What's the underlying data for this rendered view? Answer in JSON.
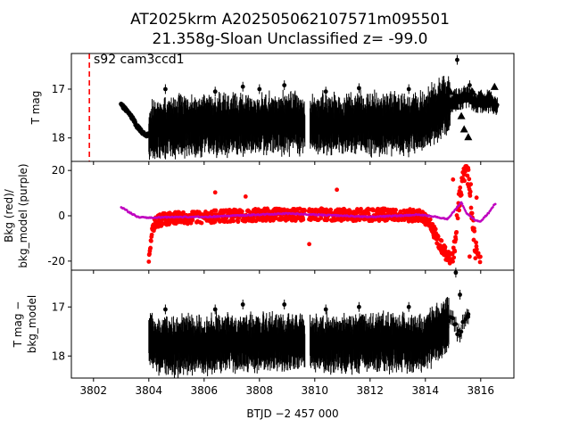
{
  "title_line1": "AT2025krm  A202505062107571m095501",
  "title_line2": "21.358g-Sloan Unclassified z= -99.0",
  "annotation": "s92 cam3ccd1",
  "colors": {
    "data": "#000000",
    "background_points": "#ff0000",
    "background_model": "#bf00bf",
    "marker_line": "#ff0000"
  },
  "chart_data": [
    {
      "type": "scatter",
      "panel": "top",
      "ylabel": "T mag",
      "xlim": [
        3801.2,
        3817.2
      ],
      "ylim": [
        18.48,
        16.27
      ],
      "y_inverted": true,
      "yticks": [
        "17",
        "18"
      ],
      "vertical_line_x": 3801.85,
      "series": [
        {
          "points": [
            [
              3803.0,
              17.32
            ],
            [
              3803.3,
              17.5
            ],
            [
              3803.6,
              17.78
            ],
            [
              3803.9,
              17.96
            ],
            [
              3804.1,
              17.9
            ],
            [
              3804.5,
              17.8
            ],
            [
              3805.0,
              17.75
            ],
            [
              3805.5,
              17.75
            ],
            [
              3806.0,
              17.74
            ],
            [
              3806.5,
              17.72
            ],
            [
              3807.0,
              17.72
            ],
            [
              3807.5,
              17.72
            ],
            [
              3808.0,
              17.72
            ],
            [
              3808.5,
              17.7
            ],
            [
              3809.0,
              17.7
            ],
            [
              3809.5,
              17.7
            ],
            [
              3809.9,
              17.72
            ],
            [
              3810.5,
              17.72
            ],
            [
              3811.0,
              17.72
            ],
            [
              3811.5,
              17.7
            ],
            [
              3812.0,
              17.7
            ],
            [
              3812.5,
              17.7
            ],
            [
              3813.0,
              17.7
            ],
            [
              3813.5,
              17.72
            ],
            [
              3814.0,
              17.62
            ],
            [
              3814.5,
              17.4
            ],
            [
              3814.9,
              17.3
            ],
            [
              3815.2,
              17.2
            ],
            [
              3815.5,
              17.15
            ],
            [
              3815.9,
              17.25
            ],
            [
              3816.2,
              17.25
            ],
            [
              3816.5,
              17.3
            ]
          ],
          "outliers": [
            [
              3804.6,
              17.0
            ],
            [
              3806.4,
              17.05
            ],
            [
              3807.4,
              16.95
            ],
            [
              3808.0,
              17.0
            ],
            [
              3808.9,
              16.92
            ],
            [
              3810.4,
              17.05
            ],
            [
              3811.6,
              16.98
            ],
            [
              3813.4,
              17.0
            ],
            [
              3815.15,
              16.4
            ],
            [
              3815.6,
              16.92
            ]
          ],
          "triangles": [
            [
              3814.9,
              17.05
            ],
            [
              3815.1,
              17.35
            ],
            [
              3815.3,
              17.55
            ],
            [
              3815.5,
              17.2
            ],
            [
              3815.7,
              17.05
            ],
            [
              3816.0,
              17.1
            ],
            [
              3816.3,
              17.1
            ],
            [
              3816.5,
              16.95
            ],
            [
              3815.4,
              17.82
            ],
            [
              3815.55,
              17.98
            ]
          ]
        }
      ]
    },
    {
      "type": "scatter",
      "panel": "middle",
      "ylabel": "Bkg (red)/ bkg_model (purple)",
      "xlim": [
        3801.2,
        3817.2
      ],
      "ylim": [
        -24.0,
        24.0
      ],
      "yticks": [
        20,
        0,
        -20
      ],
      "series": [
        {
          "points": [
            [
              3804.0,
              -19.5
            ],
            [
              3804.05,
              -15.0
            ],
            [
              3804.1,
              -8.0
            ],
            [
              3804.2,
              -3.0
            ],
            [
              3804.5,
              -1.5
            ],
            [
              3805.0,
              -1.0
            ],
            [
              3806.0,
              -0.5
            ],
            [
              3807.0,
              0.0
            ],
            [
              3808.0,
              0.5
            ],
            [
              3809.0,
              0.5
            ],
            [
              3809.6,
              0.5
            ],
            [
              3810.0,
              0.5
            ],
            [
              3811.0,
              0.5
            ],
            [
              3812.0,
              0.5
            ],
            [
              3813.0,
              0.5
            ],
            [
              3813.8,
              0.0
            ],
            [
              3814.2,
              -4.0
            ],
            [
              3814.5,
              -12.0
            ],
            [
              3814.8,
              -18.0
            ],
            [
              3815.0,
              -20.0
            ],
            [
              3815.2,
              5.0
            ],
            [
              3815.3,
              12.0
            ],
            [
              3815.45,
              21.0
            ],
            [
              3815.6,
              15.0
            ],
            [
              3815.7,
              0.0
            ],
            [
              3815.8,
              -14.0
            ],
            [
              3815.9,
              -20.0
            ]
          ],
          "outliers": [
            [
              3806.4,
              10.3
            ],
            [
              3807.5,
              8.5
            ],
            [
              3809.8,
              -12.5
            ],
            [
              3810.8,
              11.5
            ],
            [
              3815.0,
              16.0
            ],
            [
              3815.4,
              19.0
            ],
            [
              3815.6,
              -18.0
            ],
            [
              3815.85,
              8.0
            ]
          ]
        },
        {
          "points": [
            [
              3803.0,
              4.0
            ],
            [
              3803.3,
              1.5
            ],
            [
              3803.6,
              -0.5
            ],
            [
              3804.0,
              -0.8
            ],
            [
              3805.0,
              -0.5
            ],
            [
              3806.0,
              -0.5
            ],
            [
              3807.0,
              0.0
            ],
            [
              3808.0,
              0.5
            ],
            [
              3809.0,
              1.0
            ],
            [
              3809.5,
              0.8
            ],
            [
              3810.0,
              0.5
            ],
            [
              3811.0,
              0.0
            ],
            [
              3812.0,
              -0.5
            ],
            [
              3813.0,
              0.0
            ],
            [
              3813.8,
              0.5
            ],
            [
              3814.4,
              -0.5
            ],
            [
              3814.8,
              -1.5
            ],
            [
              3815.1,
              3.0
            ],
            [
              3815.3,
              6.0
            ],
            [
              3815.5,
              1.0
            ],
            [
              3815.8,
              -2.0
            ],
            [
              3816.0,
              -2.5
            ],
            [
              3816.3,
              1.5
            ],
            [
              3816.5,
              5.0
            ]
          ]
        }
      ]
    },
    {
      "type": "scatter",
      "panel": "bottom",
      "ylabel": "T mag − bkg_model",
      "xlabel": "BTJD −2 457 000",
      "xlim": [
        3801.2,
        3817.2
      ],
      "ylim": [
        18.45,
        16.25
      ],
      "y_inverted": true,
      "xticks": [
        3802,
        3804,
        3806,
        3808,
        3810,
        3812,
        3814,
        3816
      ],
      "yticks": [
        "17",
        "18"
      ],
      "series": [
        {
          "points": [
            [
              3804.0,
              17.75
            ],
            [
              3804.5,
              17.8
            ],
            [
              3805.0,
              17.8
            ],
            [
              3805.5,
              17.78
            ],
            [
              3806.0,
              17.78
            ],
            [
              3806.5,
              17.75
            ],
            [
              3807.0,
              17.75
            ],
            [
              3807.5,
              17.75
            ],
            [
              3808.0,
              17.75
            ],
            [
              3808.5,
              17.72
            ],
            [
              3809.0,
              17.72
            ],
            [
              3809.5,
              17.72
            ],
            [
              3809.9,
              17.75
            ],
            [
              3810.5,
              17.75
            ],
            [
              3811.0,
              17.75
            ],
            [
              3811.5,
              17.72
            ],
            [
              3812.0,
              17.72
            ],
            [
              3812.5,
              17.72
            ],
            [
              3813.0,
              17.72
            ],
            [
              3813.5,
              17.75
            ],
            [
              3814.0,
              17.72
            ],
            [
              3814.3,
              17.6
            ],
            [
              3814.6,
              17.5
            ],
            [
              3815.0,
              17.2
            ],
            [
              3815.2,
              17.55
            ],
            [
              3815.5,
              17.12
            ]
          ],
          "outliers": [
            [
              3804.6,
              17.05
            ],
            [
              3806.4,
              17.05
            ],
            [
              3807.4,
              16.95
            ],
            [
              3808.9,
              16.95
            ],
            [
              3810.4,
              17.05
            ],
            [
              3811.6,
              17.0
            ],
            [
              3813.4,
              17.0
            ],
            [
              3815.1,
              16.3
            ],
            [
              3815.25,
              16.75
            ],
            [
              3815.55,
              17.15
            ]
          ]
        }
      ]
    }
  ]
}
